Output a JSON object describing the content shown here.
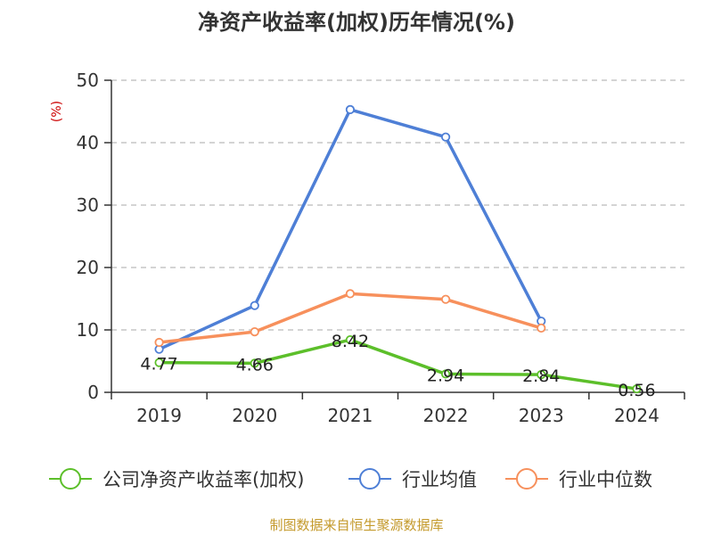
{
  "chart_data": {
    "type": "line",
    "title": "净资产收益率(加权)历年情况(%)",
    "ylabel": "(%)",
    "xlabel": "",
    "categories": [
      "2019",
      "2020",
      "2021",
      "2022",
      "2023",
      "2024"
    ],
    "ylim": [
      0,
      50
    ],
    "yticks": [
      0,
      10,
      20,
      30,
      40,
      50
    ],
    "grid": true,
    "series": [
      {
        "name": "公司净资产收益率(加权)",
        "color": "#5cbf2a",
        "values": [
          4.77,
          4.66,
          8.42,
          2.94,
          2.84,
          0.56
        ],
        "show_labels": true
      },
      {
        "name": "行业均值",
        "color": "#4e7fd6",
        "values": [
          6.9,
          13.9,
          45.3,
          40.9,
          11.4,
          null
        ],
        "show_labels": false
      },
      {
        "name": "行业中位数",
        "color": "#f7905c",
        "values": [
          8.0,
          9.7,
          15.8,
          14.9,
          10.3,
          null
        ],
        "show_labels": false
      }
    ],
    "legend_position": "bottom",
    "source": "制图数据来自恒生聚源数据库",
    "colors": {
      "ylabel": "#cc0000",
      "source": "#c49a2c",
      "axis": "#333333",
      "grid": "#bbbbbb"
    }
  }
}
